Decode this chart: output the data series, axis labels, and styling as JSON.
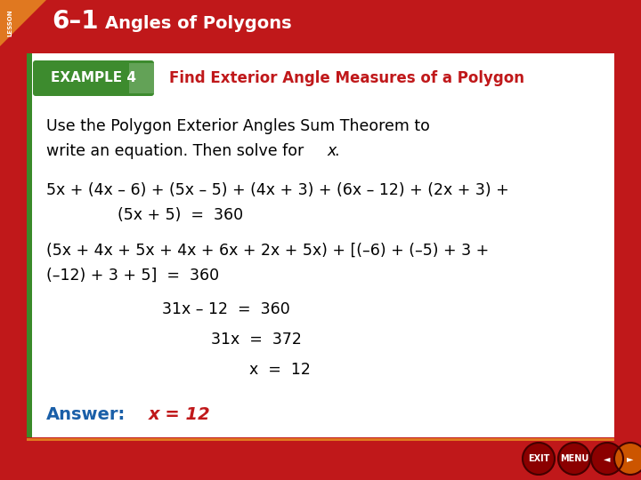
{
  "header_bg_color": "#c0181a",
  "header_label": "LESSON",
  "header_num": "6–1",
  "header_title": "Angles of Polygons",
  "example_label": "EXAMPLE 4",
  "example_label_bg": "#3d8b2e",
  "example_title": "Find Exterior Angle Measures of a Polygon",
  "example_title_color": "#c0181a",
  "main_bg": "#ffffff",
  "outer_bg": "#c0181a",
  "red_side_bg": "#c0181a",
  "instr_line1": "Use the Polygon Exterior Angles Sum Theorem to",
  "instr_line2_plain": "write an equation. Then solve for ",
  "instr_line2_italic": "x",
  "instr_line2_end": ".",
  "eq1_line1": "5x + (4x – 6) + (5x – 5) + (4x + 3) + (6x – 12) + (2x + 3) +",
  "eq1_line2": "(5x + 5)  =  360",
  "eq2_line1": "(5x + 4x + 5x + 4x + 6x + 2x + 5x) + [(–6) + (–5) + 3 +",
  "eq2_line2": "(–12) + 3 + 5]  =  360",
  "eq3": "31x – 12  =  360",
  "eq4": "31x  =  372",
  "eq5": "x  =  12",
  "answer_label": "Answer:",
  "answer_label_color": "#1a5fa8",
  "answer_value": "x = 12",
  "answer_value_color": "#c0181a",
  "green_accent": "#3a8a2a",
  "orange_accent": "#e07820",
  "btn_dark": "#8b0000",
  "btn_orange": "#cc4400"
}
